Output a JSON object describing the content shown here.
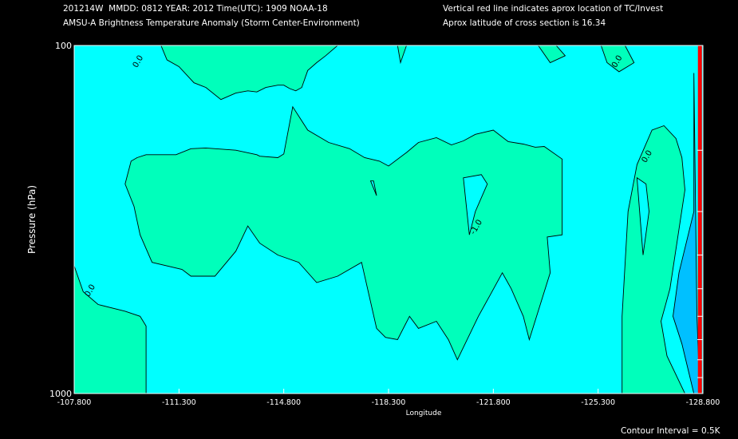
{
  "header": {
    "line1_left": "201214W  MMDD: 0812 YEAR: 2012 Time(UTC): 1909 NOAA-18",
    "line2_left": "AMSU-A Brightness Temperature Anomaly (Storm Center-Environment)",
    "line1_right": "Vertical red line indicates aprox location of TC/Invest",
    "line2_right": "Aprox latitude of cross section is 16.34"
  },
  "footer": {
    "contour_interval": "Contour Interval = 0.5K"
  },
  "colors": {
    "background": "#000000",
    "fill_level_0": "#00ffff",
    "fill_level_positive": "#00ffbb",
    "fill_level_negative": "#00c0ff",
    "contour": "#000000",
    "tc_marker": "#ff0000",
    "axes": "#ffffff"
  },
  "chart_data": {
    "type": "contour",
    "title": "AMSU-A Brightness Temperature Anomaly (Storm Center-Environment)",
    "xlabel": "Longitude",
    "ylabel": "Pressure (hPa)",
    "xlim": [
      -107.8,
      -128.8
    ],
    "ylim": [
      1000,
      100
    ],
    "y_scale": "log",
    "x_ticks": [
      -107.8,
      -111.3,
      -114.8,
      -118.3,
      -121.8,
      -125.3,
      -128.8
    ],
    "x_tick_labels": [
      "-107.800",
      "-111.300",
      "-114.800",
      "-118.300",
      "-121.800",
      "-125.300",
      "-128.800"
    ],
    "y_tick_labels": [
      {
        "value": 100,
        "label": "100"
      },
      {
        "value": 1000,
        "label": "1000"
      }
    ],
    "y_minor_ticks": [
      200,
      300,
      400,
      500,
      600,
      700,
      800,
      900
    ],
    "tc_marker_longitude": -128.7,
    "contour_labels": [
      {
        "text": "0.0",
        "lon": -110.0,
        "p": 112
      },
      {
        "text": "0.0",
        "lon": -108.4,
        "p": 510
      },
      {
        "text": "-1.0",
        "lon": -121.3,
        "p": 335
      },
      {
        "text": "0.0",
        "lon": -127.0,
        "p": 210
      },
      {
        "text": "0.0",
        "lon": -126.0,
        "p": 112
      }
    ],
    "regions": [
      {
        "level": "positive",
        "label": "0.0",
        "points": [
          [
            -107.8,
            100
          ],
          [
            -108.2,
            100
          ],
          [
            -108.6,
            100
          ],
          [
            -109.0,
            100
          ],
          [
            -109.4,
            100
          ],
          [
            -109.8,
            100
          ],
          [
            -110.2,
            100
          ],
          [
            -110.7,
            100
          ],
          [
            -110.9,
            110
          ],
          [
            -111.3,
            115
          ],
          [
            -111.8,
            128
          ],
          [
            -112.2,
            132
          ],
          [
            -112.7,
            143
          ],
          [
            -113.2,
            137
          ],
          [
            -113.6,
            135
          ],
          [
            -113.9,
            136
          ],
          [
            -114.2,
            132
          ],
          [
            -114.6,
            130
          ],
          [
            -114.8,
            130
          ],
          [
            -115.0,
            133
          ],
          [
            -115.2,
            135
          ],
          [
            -115.4,
            132
          ],
          [
            -115.6,
            118
          ],
          [
            -115.9,
            112
          ],
          [
            -116.2,
            107
          ],
          [
            -116.6,
            100
          ],
          [
            -107.8,
            100
          ]
        ]
      },
      {
        "level": "positive",
        "label": "",
        "points": [
          [
            -118.6,
            100
          ],
          [
            -118.7,
            112
          ],
          [
            -118.9,
            100
          ]
        ]
      },
      {
        "level": "positive",
        "label": "0.0",
        "points": [
          [
            -125.4,
            100
          ],
          [
            -125.6,
            112
          ],
          [
            -126.0,
            119
          ],
          [
            -126.5,
            112
          ],
          [
            -126.2,
            100
          ],
          [
            -125.4,
            100
          ]
        ]
      },
      {
        "level": "positive",
        "label": "",
        "points": [
          [
            -123.3,
            100
          ],
          [
            -123.7,
            112
          ],
          [
            -124.2,
            107
          ],
          [
            -123.9,
            100
          ],
          [
            -123.3,
            100
          ]
        ]
      },
      {
        "level": "positive",
        "label": "",
        "points": [
          [
            -109.9,
            210
          ],
          [
            -110.2,
            206
          ],
          [
            -111.2,
            206
          ],
          [
            -111.7,
            198
          ],
          [
            -112.2,
            197
          ],
          [
            -113.2,
            200
          ],
          [
            -113.9,
            206
          ],
          [
            -114.0,
            208
          ],
          [
            -114.6,
            210
          ],
          [
            -114.8,
            205
          ],
          [
            -115.1,
            150
          ],
          [
            -115.6,
            175
          ],
          [
            -116.3,
            190
          ],
          [
            -117.0,
            198
          ],
          [
            -117.5,
            210
          ],
          [
            -118.0,
            215
          ],
          [
            -118.3,
            222
          ],
          [
            -118.9,
            203
          ],
          [
            -119.3,
            190
          ],
          [
            -119.9,
            184
          ],
          [
            -120.4,
            193
          ],
          [
            -120.8,
            188
          ],
          [
            -121.2,
            180
          ],
          [
            -121.8,
            175
          ],
          [
            -122.3,
            189
          ],
          [
            -122.8,
            192
          ],
          [
            -123.2,
            196
          ],
          [
            -123.5,
            195
          ],
          [
            -124.1,
            212
          ],
          [
            -124.1,
            350
          ],
          [
            -123.6,
            355
          ],
          [
            -123.7,
            450
          ],
          [
            -123.0,
            700
          ],
          [
            -122.8,
            600
          ],
          [
            -122.4,
            500
          ],
          [
            -122.1,
            450
          ],
          [
            -121.7,
            520
          ],
          [
            -121.3,
            600
          ],
          [
            -120.6,
            800
          ],
          [
            -120.3,
            700
          ],
          [
            -119.9,
            620
          ],
          [
            -119.3,
            650
          ],
          [
            -119.0,
            600
          ],
          [
            -118.6,
            700
          ],
          [
            -118.2,
            690
          ],
          [
            -117.9,
            650
          ],
          [
            -117.4,
            420
          ],
          [
            -116.6,
            460
          ],
          [
            -115.9,
            480
          ],
          [
            -115.3,
            420
          ],
          [
            -114.6,
            400
          ],
          [
            -114.0,
            370
          ],
          [
            -113.6,
            330
          ],
          [
            -113.2,
            390
          ],
          [
            -112.5,
            460
          ],
          [
            -111.7,
            460
          ],
          [
            -111.4,
            440
          ],
          [
            -110.4,
            420
          ],
          [
            -110.0,
            350
          ],
          [
            -109.8,
            290
          ],
          [
            -109.5,
            250
          ],
          [
            -109.7,
            215
          ],
          [
            -109.9,
            210
          ]
        ]
      },
      {
        "level": "positive",
        "label": "",
        "points": [
          [
            -107.8,
            430
          ],
          [
            -108.1,
            510
          ],
          [
            -108.6,
            555
          ],
          [
            -109.5,
            580
          ],
          [
            -110.0,
            600
          ],
          [
            -110.2,
            640
          ],
          [
            -110.2,
            1000
          ],
          [
            -107.8,
            1000
          ],
          [
            -107.8,
            430
          ]
        ]
      },
      {
        "level": "positive",
        "label": "",
        "points": [
          [
            -126.3,
            300
          ],
          [
            -126.6,
            220
          ],
          [
            -127.1,
            175
          ],
          [
            -127.5,
            170
          ],
          [
            -127.9,
            185
          ],
          [
            -128.1,
            210
          ],
          [
            -128.2,
            260
          ],
          [
            -127.7,
            500
          ],
          [
            -127.4,
            620
          ],
          [
            -127.6,
            780
          ],
          [
            -128.2,
            1000
          ],
          [
            -126.1,
            1000
          ],
          [
            -126.1,
            600
          ],
          [
            -126.3,
            300
          ]
        ]
      },
      {
        "level": "negative",
        "label": "",
        "points": [
          [
            -128.5,
            120
          ],
          [
            -128.6,
            600
          ],
          [
            -128.7,
            1000
          ],
          [
            -128.5,
            1000
          ],
          [
            -128.1,
            720
          ],
          [
            -127.8,
            600
          ],
          [
            -128.0,
            450
          ],
          [
            -128.5,
            300
          ],
          [
            -128.5,
            120
          ]
        ]
      },
      {
        "level": "zero",
        "label": "-1.0",
        "points": [
          [
            -120.8,
            240
          ],
          [
            -121.4,
            235
          ],
          [
            -121.6,
            250
          ],
          [
            -121.2,
            300
          ],
          [
            -121.0,
            350
          ],
          [
            -120.8,
            240
          ]
        ]
      },
      {
        "level": "zero",
        "label": "",
        "points": [
          [
            -117.7,
            245
          ],
          [
            -117.8,
            245
          ],
          [
            -117.9,
            270
          ],
          [
            -117.7,
            245
          ]
        ]
      },
      {
        "level": "zero",
        "label": "",
        "points": [
          [
            -126.6,
            240
          ],
          [
            -126.9,
            250
          ],
          [
            -127.0,
            300
          ],
          [
            -126.8,
            400
          ],
          [
            -126.6,
            240
          ]
        ]
      }
    ]
  }
}
